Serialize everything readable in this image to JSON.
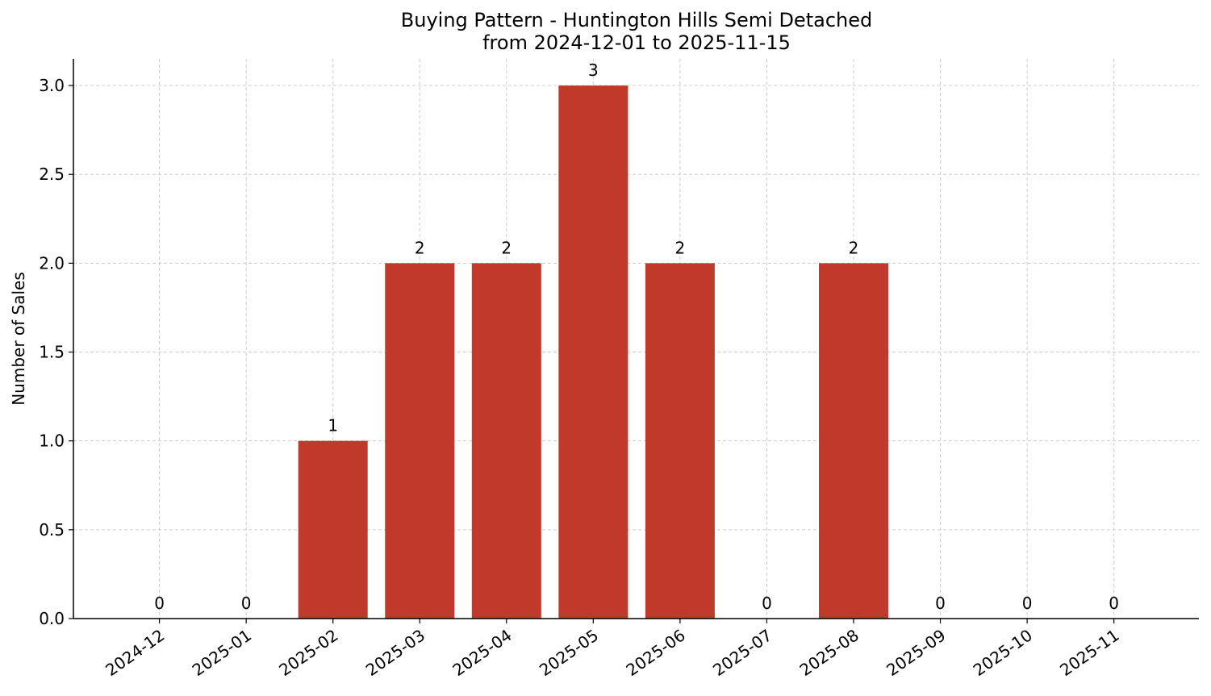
{
  "chart_data": {
    "type": "bar",
    "title": "Buying Pattern - Huntington Hills Semi Detached",
    "subtitle": "from 2024-12-01 to 2025-11-15",
    "xlabel": "",
    "ylabel": "Number of Sales",
    "categories": [
      "2024-12",
      "2025-01",
      "2025-02",
      "2025-03",
      "2025-04",
      "2025-05",
      "2025-06",
      "2025-07",
      "2025-08",
      "2025-09",
      "2025-10",
      "2025-11"
    ],
    "values": [
      0,
      0,
      1,
      2,
      2,
      3,
      2,
      0,
      2,
      0,
      0,
      0
    ],
    "data_labels": [
      "0",
      "0",
      "1",
      "2",
      "2",
      "3",
      "2",
      "0",
      "2",
      "0",
      "0",
      "0"
    ],
    "ylim": [
      0,
      3.15
    ],
    "yticks": [
      0.0,
      0.5,
      1.0,
      1.5,
      2.0,
      2.5,
      3.0
    ],
    "ytick_labels": [
      "0.0",
      "0.5",
      "1.0",
      "1.5",
      "2.0",
      "2.5",
      "3.0"
    ],
    "bar_color": "#c0392b",
    "grid": true,
    "grid_style": "dashed",
    "legend": "none"
  }
}
